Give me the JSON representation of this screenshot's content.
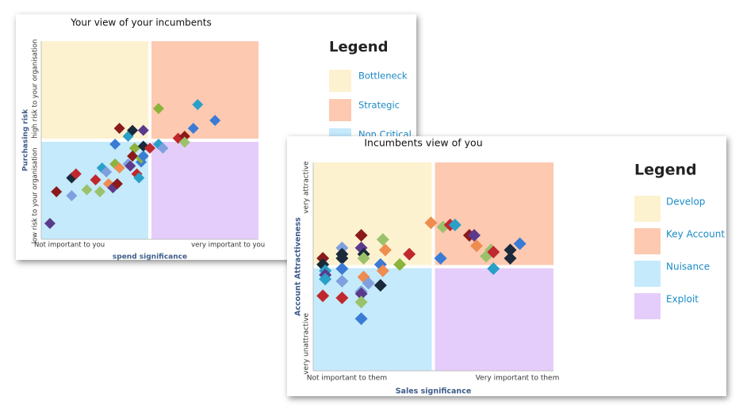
{
  "chart_data": [
    {
      "type": "quadrant-scatter",
      "title": "Your view of your incumbents",
      "x_label": "spend significance",
      "y_label": "Purchasing risk",
      "xlim": [
        0,
        100
      ],
      "ylim": [
        0,
        100
      ],
      "xticks": [
        {
          "value": 13,
          "label": "Not important to you"
        },
        {
          "value": 86,
          "label": "very important to you"
        }
      ],
      "yticks": [
        {
          "value": 22,
          "label": "low risk to your organisation"
        },
        {
          "value": 76,
          "label": "high risk to your organisation"
        }
      ],
      "quadrant_colors": [
        "#fdf2cf",
        "#fdc9b0",
        "#c4eafb",
        "#e5cdfb"
      ],
      "legend_title": "Legend",
      "legend": [
        "Bottleneck",
        "Strategic",
        "Non Critical"
      ],
      "x": [
        4,
        7,
        14,
        14,
        16,
        21,
        25,
        27,
        28,
        30,
        31,
        33,
        35,
        34,
        36,
        34,
        36,
        40,
        40,
        41,
        42,
        43,
        42,
        44,
        45,
        46,
        46,
        47,
        47,
        47,
        50,
        54,
        54,
        56,
        63,
        66,
        66,
        70,
        72,
        80
      ],
      "values": [
        8,
        24,
        22,
        31,
        33,
        25,
        30,
        24,
        36,
        34,
        28,
        26,
        28,
        48,
        56,
        38,
        36,
        52,
        38,
        37,
        55,
        46,
        42,
        33,
        31,
        39,
        41,
        55,
        47,
        42,
        46,
        66,
        48,
        46,
        51,
        52,
        49,
        56,
        68,
        60
      ],
      "colors": [
        "#5b3a8c",
        "#8b1a1a",
        "#7f9fdf",
        "#1a2a3a",
        "#c0282d",
        "#9bc26b",
        "#c0282d",
        "#9bc26b",
        "#2aa0c8",
        "#7f9fdf",
        "#ef8c4f",
        "#5b3a8c",
        "#8b1a1a",
        "#3a7bd5",
        "#8b1a1a",
        "#8cb33a",
        "#ef8c4f",
        "#2aa0c8",
        "#7f9fdf",
        "#5b3a8c",
        "#1a2a3a",
        "#8cb33a",
        "#8b1a1a",
        "#c0282d",
        "#2aa0c8",
        "#3a7bd5",
        "#8cb33a",
        "#5b3a8c",
        "#1a2a3a",
        "#3a7bd5",
        "#c0282d",
        "#8cb33a",
        "#2aa0c8",
        "#7f9fdf",
        "#c0282d",
        "#8b1a1a",
        "#9bc26b",
        "#3a7bd5",
        "#2aa0c8",
        "#3a7bd5"
      ]
    },
    {
      "type": "quadrant-scatter",
      "title": "Incumbents view of you",
      "x_label": "Sales significance",
      "y_label": "Account Attractiveness",
      "xlim": [
        0,
        100
      ],
      "ylim": [
        0,
        100
      ],
      "xticks": [
        {
          "value": 14,
          "label": "Not important to them"
        },
        {
          "value": 85,
          "label": "Very important to them"
        }
      ],
      "yticks": [
        {
          "value": 13,
          "label": "very unattractive"
        },
        {
          "value": 88,
          "label": "very attractive"
        }
      ],
      "quadrant_colors": [
        "#fdf2cf",
        "#fdc9b0",
        "#c4eafb",
        "#e5cdfb"
      ],
      "legend_title": "Legend",
      "legend": [
        "Develop",
        "Key Account",
        "Nuisance",
        "Exploit"
      ],
      "x": [
        4,
        4,
        5,
        5,
        5,
        4,
        12,
        12,
        12,
        12,
        12,
        12,
        20,
        20,
        21,
        21,
        21,
        20,
        20,
        20,
        20,
        23,
        28,
        28,
        29,
        29,
        30,
        36,
        40,
        49,
        53,
        54,
        57,
        59,
        65,
        67,
        68,
        72,
        74,
        75,
        75,
        82,
        82,
        86
      ],
      "values": [
        54,
        51,
        48,
        46,
        44,
        36,
        59,
        56,
        54,
        49,
        43,
        35,
        65,
        59,
        56,
        54,
        45,
        38,
        37,
        33,
        25,
        42,
        41,
        51,
        48,
        63,
        58,
        51,
        56,
        71,
        54,
        69,
        70,
        70,
        65,
        65,
        60,
        55,
        58,
        49,
        57,
        58,
        54,
        61
      ],
      "colors": [
        "#8b1a1a",
        "#1a2a3a",
        "#2aa0c8",
        "#5b3a8c",
        "#2aa0c8",
        "#c0282d",
        "#7f9fdf",
        "#1a2a3a",
        "#1a2a3a",
        "#3a7bd5",
        "#7f9fdf",
        "#c0282d",
        "#8b1a1a",
        "#5b3a8c",
        "#1a2a3a",
        "#9bc26b",
        "#ef8c4f",
        "#7f9fdf",
        "#5b3a8c",
        "#9bc26b",
        "#3a7bd5",
        "#7f9fdf",
        "#1a2a3a",
        "#3a7bd5",
        "#ef8c4f",
        "#9bc26b",
        "#ef8c4f",
        "#8cb33a",
        "#c0282d",
        "#ef8c4f",
        "#3a7bd5",
        "#9bc26b",
        "#c0282d",
        "#2aa0c8",
        "#8b1a1a",
        "#5b3a8c",
        "#ef8c4f",
        "#9bc26b",
        "#9bc26b",
        "#2aa0c8",
        "#c0282d",
        "#1a2a3a",
        "#1a2a3a",
        "#3a7bd5"
      ]
    }
  ]
}
